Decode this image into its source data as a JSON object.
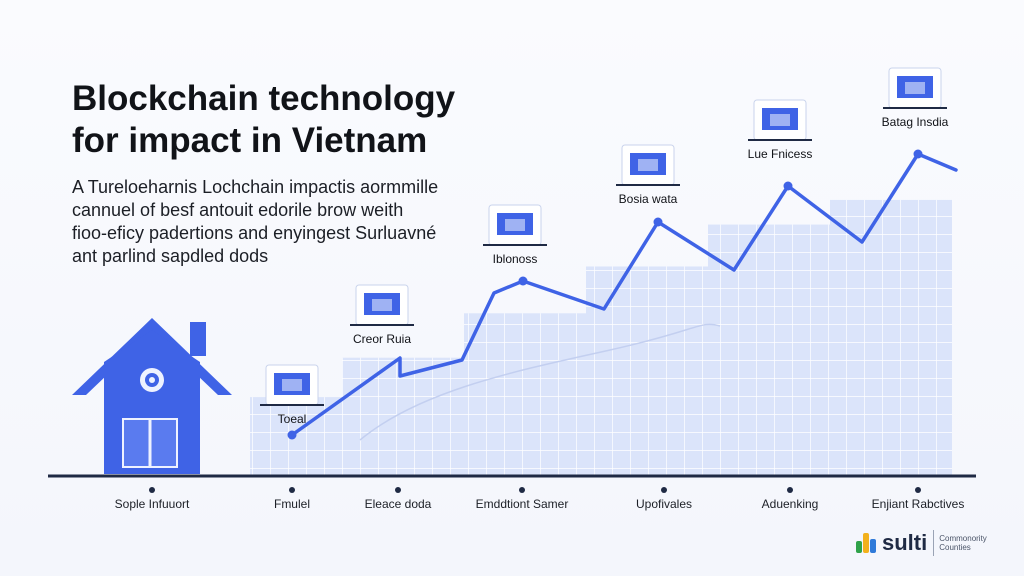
{
  "header": {
    "title_lines": [
      "Blockchain technology",
      "for impact in Vietnam"
    ],
    "description_lines": [
      "A Tureloeharnis Lochchain impactis aormmille",
      "cannuel of besf antouit edorile brow weith",
      "fioo-eficy padertions and enyingest Surluavné",
      "ant parlind sapdled dods"
    ]
  },
  "chart_data": {
    "type": "line",
    "steps": [
      {
        "label": "Toeal",
        "rel": 0.32
      },
      {
        "label": "Creor Ruia",
        "rel": 0.48
      },
      {
        "label": "Iblonoss",
        "rel": 0.66
      },
      {
        "label": "Bosia wata",
        "rel": 0.85
      },
      {
        "label": "Lue Fnicess",
        "rel": 1.02
      },
      {
        "label": "Batag Insdia",
        "rel": 1.12
      }
    ],
    "x_labels": [
      "Sople Infuuort",
      "Fmulel",
      "Eleace doda",
      "Emddtiont Samer",
      "Upofivales",
      "Aduenking",
      "Enjiant Rabctives"
    ],
    "line_values": [
      0.1,
      0.42,
      0.45,
      0.68,
      0.6,
      0.86,
      0.74,
      0.98,
      0.84,
      1.12,
      1.06
    ],
    "colors": {
      "line": "#3f63e6",
      "bar": "#dbe4fa",
      "bar_grid": "#ffffff",
      "house": "#3f63e6"
    }
  },
  "brand": {
    "name": "sulti",
    "tagline_lines": [
      "Commonority",
      "Counties"
    ]
  }
}
